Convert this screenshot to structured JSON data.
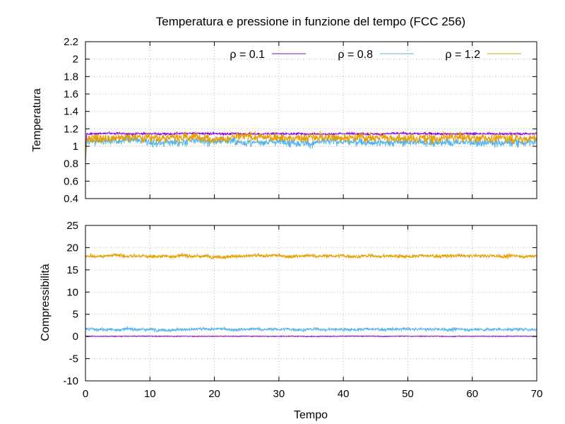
{
  "colors": {
    "rho01": "#9400d3",
    "rho08": "#56b4e9",
    "rho12": "#e69f00"
  },
  "chart_data": [
    {
      "type": "line",
      "title": "Temperatura e pressione in funzione del tempo (FCC 256)",
      "xlabel": "",
      "ylabel": "Temperatura",
      "xlim": [
        0,
        70
      ],
      "ylim": [
        0.4,
        2.2
      ],
      "yticks": [
        "0.4",
        "0.6",
        "0.8",
        "1",
        "1.2",
        "1.4",
        "1.6",
        "1.8",
        "2",
        "2.2"
      ],
      "xticks": [],
      "grid": true,
      "legend_position": "top",
      "series": [
        {
          "name": "ρ = 0.1",
          "color": "#9400d3",
          "mean": 1.145,
          "noise": 0.012
        },
        {
          "name": "ρ = 0.8",
          "color": "#56b4e9",
          "mean": 1.05,
          "noise": 0.045
        },
        {
          "name": "ρ = 1.2",
          "color": "#e69f00",
          "mean": 1.1,
          "noise": 0.05
        }
      ]
    },
    {
      "type": "line",
      "title": "",
      "xlabel": "Tempo",
      "ylabel": "Compressibilità",
      "xlim": [
        0,
        70
      ],
      "ylim": [
        -10,
        25
      ],
      "yticks": [
        "-10",
        "-5",
        "0",
        "5",
        "10",
        "15",
        "20",
        "25"
      ],
      "xticks": [
        "0",
        "10",
        "20",
        "30",
        "40",
        "50",
        "60",
        "70"
      ],
      "grid": true,
      "series": [
        {
          "name": "ρ = 0.1",
          "color": "#9400d3",
          "mean": 0.05,
          "noise": 0.08
        },
        {
          "name": "ρ = 0.8",
          "color": "#56b4e9",
          "mean": 1.6,
          "noise": 0.35
        },
        {
          "name": "ρ = 1.2",
          "color": "#e69f00",
          "mean": 18.1,
          "noise": 0.4
        }
      ]
    }
  ]
}
